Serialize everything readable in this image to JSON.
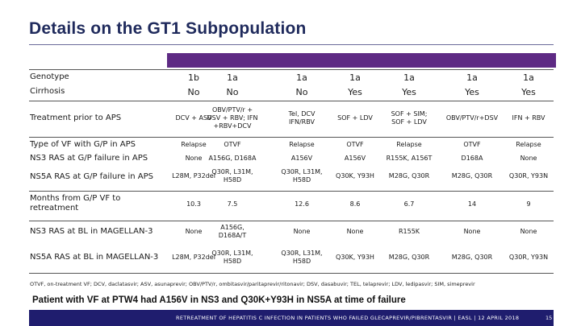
{
  "title": "Details on the GT1 Subpopulation",
  "row_labels": {
    "genotype": "Genotype",
    "cirrhosis": "Cirrhosis",
    "treatment_prior": "Treatment prior to APS",
    "vf_type": "Type of VF with G/P in APS",
    "ns3_vf": "NS3 RAS at G/P failure in APS",
    "ns5a_vf": "NS5A RAS at G/P failure in APS",
    "months": "Months from G/P VF to\nretreatment",
    "ns3_bl": "NS3 RAS at BL in MAGELLAN-3",
    "ns5a_bl": "NS5A RAS at BL in MAGELLAN-3"
  },
  "columns": [
    {
      "genotype": "1b",
      "cirrhosis": "No",
      "treatment_prior": "DCV + ASV",
      "vf_type": "Relapse",
      "ns3_vf": "None",
      "ns5a_vf": "L28M, P32del",
      "months": "10.3",
      "ns3_bl": "None",
      "ns5a_bl": "L28M, P32del"
    },
    {
      "genotype": "1a",
      "cirrhosis": "No",
      "treatment_prior": "OBV/PTV/r +\nDSV + RBV; IFN\n+RBV+DCV",
      "vf_type": "OTVF",
      "ns3_vf": "A156G, D168A",
      "ns5a_vf": "Q30R, L31M,\nH58D",
      "months": "7.5",
      "ns3_bl": "A156G,\nD168A/T",
      "ns5a_bl": "Q30R, L31M,\nH58D"
    },
    {
      "genotype": "1a",
      "cirrhosis": "No",
      "treatment_prior": "Tel, DCV\nIFN/RBV",
      "vf_type": "Relapse",
      "ns3_vf": "A156V",
      "ns5a_vf": "Q30R, L31M,\nH58D",
      "months": "12.6",
      "ns3_bl": "None",
      "ns5a_bl": "Q30R, L31M,\nH58D"
    },
    {
      "genotype": "1a",
      "cirrhosis": "Yes",
      "treatment_prior": "SOF + LDV",
      "vf_type": "OTVF",
      "ns3_vf": "A156V",
      "ns5a_vf": "Q30K, Y93H",
      "months": "8.6",
      "ns3_bl": "None",
      "ns5a_bl": "Q30K, Y93H"
    },
    {
      "genotype": "1a",
      "cirrhosis": "Yes",
      "treatment_prior": "SOF + SIM;\nSOF + LDV",
      "vf_type": "Relapse",
      "ns3_vf": "R155K, A156T",
      "ns5a_vf": "M28G, Q30R",
      "months": "6.7",
      "ns3_bl": "R155K",
      "ns5a_bl": "M28G, Q30R"
    },
    {
      "genotype": "1a",
      "cirrhosis": "Yes",
      "treatment_prior": "OBV/PTV/r+DSV",
      "vf_type": "OTVF",
      "ns3_vf": "D168A",
      "ns5a_vf": "M28G, Q30R",
      "months": "14",
      "ns3_bl": "None",
      "ns5a_bl": "M28G, Q30R"
    },
    {
      "genotype": "1a",
      "cirrhosis": "Yes",
      "treatment_prior": "IFN + RBV",
      "vf_type": "Relapse",
      "ns3_vf": "None",
      "ns5a_vf": "Q30R, Y93N",
      "months": "9",
      "ns3_bl": "None",
      "ns5a_bl": "Q30R, Y93N"
    }
  ],
  "footnote": "OTVF, on-treatment VF; DCV, daclatasvir; ASV, asunaprevir; OBV/PTV/r, ombitasvir/paritaprevir/ritonavir; DSV, dasabuvir; TEL, telaprevir; LDV, ledipasvir; SIM, simeprevir",
  "takeaway": "Patient with VF at PTW4 had A156V in NS3 and Q30K+Y93H in NS5A at time of failure",
  "footer": "RETREATMENT OF HEPATITIS C INFECTION IN PATIENTS WHO FAILED GLECAPREVIR/PIBRENTASVIR | EASL | 12 APRIL 2018",
  "page_number": "15",
  "colors": {
    "title": "#1f2a5c",
    "band": "#5e2a84",
    "footer_bg": "#1f1d6e"
  }
}
